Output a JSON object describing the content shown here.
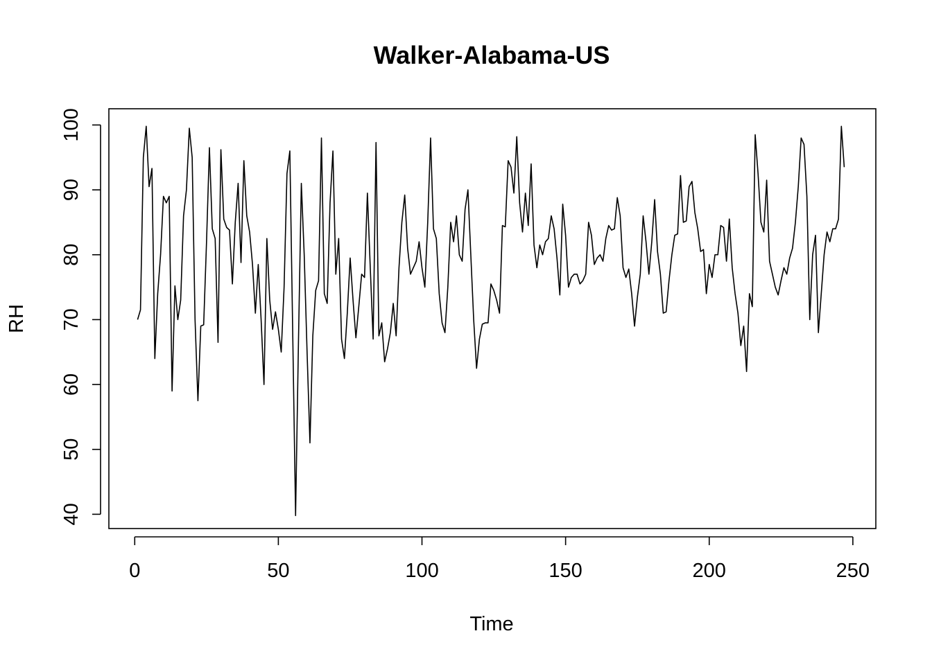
{
  "chart_data": {
    "type": "line",
    "title": "Walker-Alabama-US",
    "xlabel": "Time",
    "ylabel": "RH",
    "xlim": [
      -9,
      258
    ],
    "ylim": [
      37.8,
      102.5
    ],
    "x_ticks": [
      0,
      50,
      100,
      150,
      200,
      250
    ],
    "y_ticks": [
      40,
      50,
      60,
      70,
      80,
      90,
      100
    ],
    "grid": false,
    "legend": "none",
    "line_color": "#000000",
    "x_start": 1,
    "series": [
      {
        "values": [
          70.0,
          71.5,
          95.0,
          99.8,
          90.5,
          93.3,
          64.0,
          74.0,
          80.0,
          89.0,
          88.0,
          89.0,
          59.0,
          75.2,
          70.0,
          73.0,
          86.0,
          90.0,
          99.5,
          95.0,
          70.0,
          57.5,
          69.0,
          69.2,
          82.0,
          96.5,
          84.0,
          82.5,
          66.5,
          96.2,
          85.5,
          84.2,
          83.8,
          75.5,
          85.0,
          91.0,
          78.8,
          94.5,
          86.0,
          83.5,
          78.5,
          71.0,
          78.5,
          70.0,
          60.0,
          82.5,
          73.0,
          68.5,
          71.2,
          68.5,
          65.0,
          75.0,
          92.5,
          96.0,
          68.0,
          39.8,
          66.5,
          91.0,
          80.0,
          65.0,
          51.0,
          67.5,
          74.5,
          76.0,
          98.0,
          74.0,
          72.5,
          88.0,
          96.0,
          77.0,
          82.5,
          67.0,
          64.0,
          71.0,
          79.5,
          73.0,
          67.2,
          72.0,
          77.0,
          76.5,
          89.5,
          78.0,
          67.0,
          97.3,
          67.5,
          69.5,
          63.5,
          65.5,
          68.0,
          72.5,
          67.5,
          78.0,
          85.0,
          89.2,
          81.0,
          77.0,
          78.0,
          79.0,
          82.0,
          78.0,
          75.0,
          85.0,
          98.0,
          84.0,
          82.5,
          74.0,
          69.5,
          68.0,
          75.0,
          85.0,
          82.0,
          86.0,
          80.0,
          79.0,
          87.0,
          90.0,
          80.0,
          70.0,
          62.5,
          67.0,
          69.3,
          69.5,
          69.5,
          75.5,
          74.5,
          73.0,
          71.0,
          84.5,
          84.3,
          94.5,
          93.5,
          89.5,
          98.2,
          88.0,
          83.5,
          89.5,
          84.5,
          94.0,
          81.5,
          78.0,
          81.5,
          80.0,
          82.0,
          82.5,
          86.0,
          84.0,
          79.5,
          73.8,
          87.8,
          83.0,
          75.0,
          76.5,
          77.0,
          77.0,
          75.5,
          76.0,
          77.0,
          85.0,
          83.0,
          78.5,
          79.5,
          80.0,
          79.0,
          82.5,
          84.5,
          83.8,
          84.0,
          88.8,
          86.0,
          78.0,
          76.5,
          77.8,
          74.0,
          69.0,
          73.5,
          77.0,
          86.0,
          82.0,
          77.0,
          82.0,
          88.5,
          80.5,
          77.0,
          71.0,
          71.2,
          76.0,
          80.0,
          83.0,
          83.2,
          92.2,
          85.0,
          85.2,
          90.5,
          91.3,
          86.5,
          84.0,
          80.5,
          80.8,
          74.0,
          78.5,
          76.5,
          80.0,
          80.0,
          84.5,
          84.2,
          79.0,
          85.5,
          78.0,
          74.0,
          71.0,
          66.0,
          69.0,
          62.0,
          74.0,
          72.0,
          98.5,
          92.5,
          85.0,
          83.5,
          91.5,
          79.0,
          77.0,
          75.0,
          73.8,
          76.0,
          78.0,
          77.0,
          79.5,
          81.0,
          85.0,
          90.5,
          98.0,
          97.0,
          89.0,
          70.0,
          80.0,
          83.0,
          68.0,
          74.0,
          80.0,
          83.5,
          82.0,
          84.0,
          84.0,
          85.5,
          99.8,
          93.5
        ]
      }
    ]
  }
}
